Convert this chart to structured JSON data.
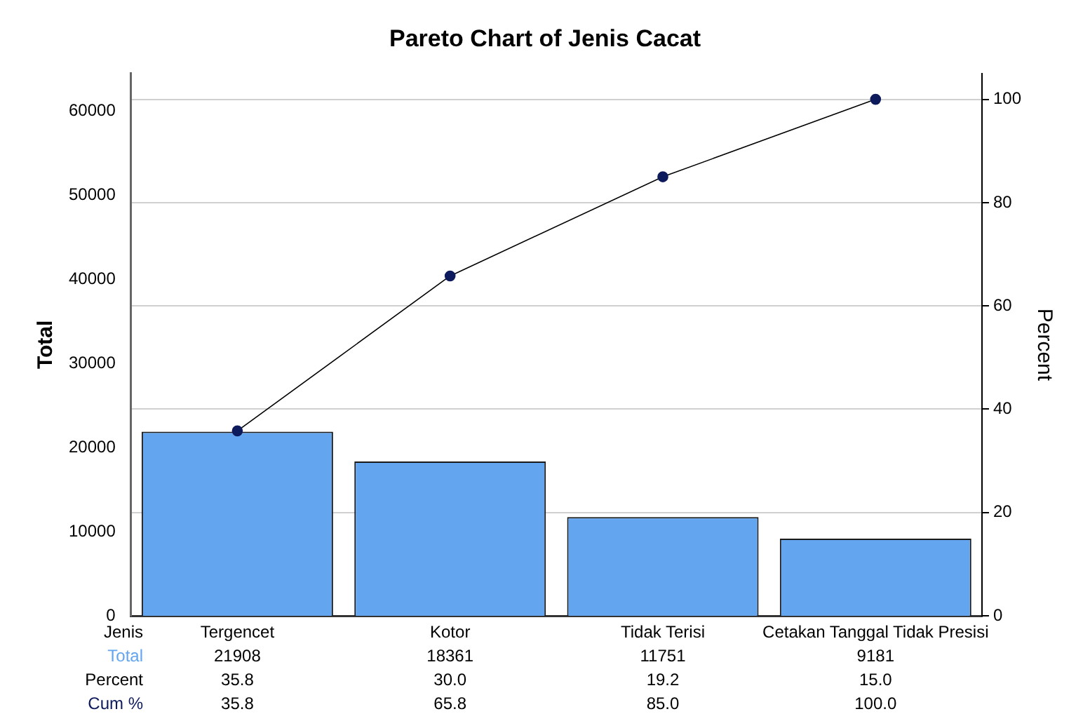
{
  "chart_data": {
    "type": "bar",
    "title": "Pareto Chart of Jenis Cacat",
    "xlabel": "Jenis",
    "ylabel": "Total",
    "y2label": "Percent",
    "categories": [
      "Tergencet",
      "Kotor",
      "Tidak Terisi",
      "Cetakan Tanggal Tidak Presisi"
    ],
    "series": [
      {
        "name": "Total",
        "color": "#64a5f0",
        "values": [
          21908,
          18361,
          11751,
          9181
        ]
      },
      {
        "name": "Cum %",
        "type": "line",
        "axis": "y2",
        "color": "#0d1a5c",
        "values": [
          35.8,
          65.8,
          85.0,
          100.0
        ],
        "value_labels": [
          "35.8",
          "65.8",
          "85.0",
          "100.0"
        ]
      }
    ],
    "annotations": [
      "Percent",
      "35.8",
      "30.0",
      "19.2",
      "15.0"
    ],
    "data_labels": true,
    "marker": "circle",
    "line_style": "solid",
    "grid": "y",
    "legend": false,
    "ylim": [
      0,
      64500
    ],
    "yticks": [
      0,
      10000,
      20000,
      30000,
      40000,
      50000,
      60000
    ],
    "y2lim": [
      0,
      105
    ],
    "y2ticks": [
      0,
      20,
      40,
      60,
      80,
      100
    ]
  }
}
